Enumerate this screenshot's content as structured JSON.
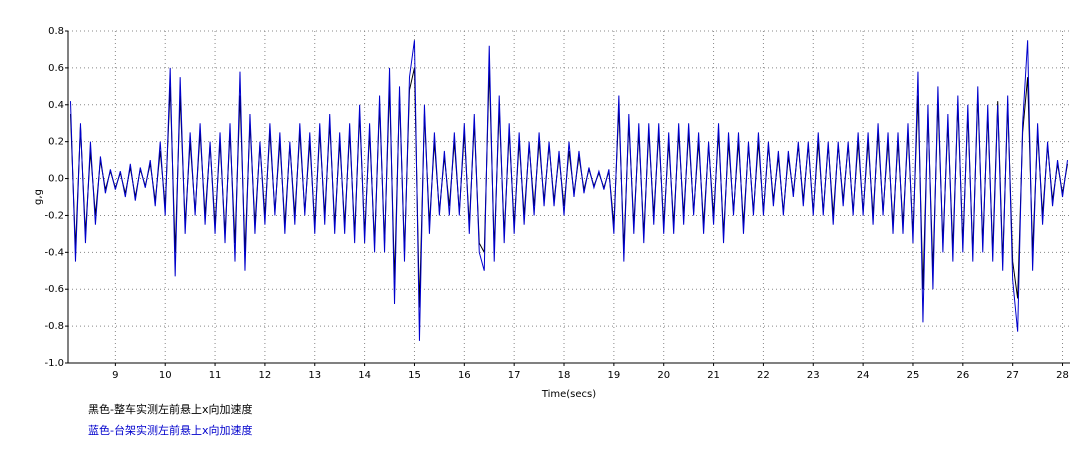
{
  "chart_data": {
    "type": "line",
    "x_label": "Time(secs)",
    "y_label": "g,g",
    "xlim": [
      8.05,
      28.15
    ],
    "ylim": [
      -1.0,
      0.8
    ],
    "xticks": [
      9,
      10,
      11,
      12,
      13,
      14,
      15,
      16,
      17,
      18,
      19,
      20,
      21,
      22,
      23,
      24,
      25,
      26,
      27,
      28
    ],
    "yticks": [
      0.8,
      0.6,
      0.4,
      0.2,
      {
        "value": 0,
        "label": "0.0"
      },
      -0.2,
      -0.4,
      -0.6,
      -0.8,
      {
        "value": -1.0,
        "label": "-1.0"
      }
    ],
    "grid": true,
    "x": [
      8.1,
      8.2,
      8.3,
      8.4,
      8.5,
      8.6,
      8.7,
      8.8,
      8.9,
      9.0,
      9.1,
      9.2,
      9.3,
      9.4,
      9.5,
      9.6,
      9.7,
      9.8,
      9.9,
      10.0,
      10.1,
      10.2,
      10.3,
      10.4,
      10.5,
      10.6,
      10.7,
      10.8,
      10.9,
      11.0,
      11.1,
      11.2,
      11.3,
      11.4,
      11.5,
      11.6,
      11.7,
      11.8,
      11.9,
      12.0,
      12.1,
      12.2,
      12.3,
      12.4,
      12.5,
      12.6,
      12.7,
      12.8,
      12.9,
      13.0,
      13.1,
      13.2,
      13.3,
      13.4,
      13.5,
      13.6,
      13.7,
      13.8,
      13.9,
      14.0,
      14.1,
      14.2,
      14.3,
      14.4,
      14.5,
      14.6,
      14.7,
      14.8,
      14.9,
      15.0,
      15.1,
      15.2,
      15.3,
      15.4,
      15.5,
      15.6,
      15.7,
      15.8,
      15.9,
      16.0,
      16.1,
      16.2,
      16.3,
      16.4,
      16.5,
      16.6,
      16.7,
      16.8,
      16.9,
      17.0,
      17.1,
      17.2,
      17.3,
      17.4,
      17.5,
      17.6,
      17.7,
      17.8,
      17.9,
      18.0,
      18.1,
      18.2,
      18.3,
      18.4,
      18.5,
      18.6,
      18.7,
      18.8,
      18.9,
      19.0,
      19.1,
      19.2,
      19.3,
      19.4,
      19.5,
      19.6,
      19.7,
      19.8,
      19.9,
      20.0,
      20.1,
      20.2,
      20.3,
      20.4,
      20.5,
      20.6,
      20.7,
      20.8,
      20.9,
      21.0,
      21.1,
      21.2,
      21.3,
      21.4,
      21.5,
      21.6,
      21.7,
      21.8,
      21.9,
      22.0,
      22.1,
      22.2,
      22.3,
      22.4,
      22.5,
      22.6,
      22.7,
      22.8,
      22.9,
      23.0,
      23.1,
      23.2,
      23.3,
      23.4,
      23.5,
      23.6,
      23.7,
      23.8,
      23.9,
      24.0,
      24.1,
      24.2,
      24.3,
      24.4,
      24.5,
      24.6,
      24.7,
      24.8,
      24.9,
      25.0,
      25.1,
      25.2,
      25.3,
      25.4,
      25.5,
      25.6,
      25.7,
      25.8,
      25.9,
      26.0,
      26.1,
      26.2,
      26.3,
      26.4,
      26.5,
      26.6,
      26.7,
      26.8,
      26.9,
      27.0,
      27.1,
      27.2,
      27.3,
      27.4,
      27.5,
      27.6,
      27.7,
      27.8,
      27.9,
      28.0,
      28.1
    ],
    "series": [
      {
        "name": "黑色-整车实测左前悬上x向加速度",
        "color": "#000000",
        "values": [
          0.35,
          -0.38,
          0.28,
          -0.3,
          0.15,
          -0.2,
          0.1,
          -0.06,
          0.04,
          -0.05,
          0.03,
          -0.08,
          0.06,
          -0.1,
          0.05,
          -0.04,
          0.08,
          -0.12,
          0.15,
          -0.15,
          0.5,
          -0.4,
          0.45,
          -0.25,
          0.2,
          -0.18,
          0.25,
          -0.2,
          0.18,
          -0.25,
          0.2,
          -0.3,
          0.25,
          -0.35,
          0.45,
          -0.4,
          0.3,
          -0.25,
          0.18,
          -0.2,
          0.25,
          -0.18,
          0.2,
          -0.25,
          0.18,
          -0.2,
          0.25,
          -0.18,
          0.2,
          -0.25,
          0.25,
          -0.2,
          0.3,
          -0.25,
          0.2,
          -0.25,
          0.25,
          -0.3,
          0.35,
          -0.3,
          0.25,
          -0.35,
          0.4,
          -0.35,
          0.5,
          -0.55,
          0.45,
          -0.4,
          0.48,
          0.6,
          -0.7,
          0.35,
          -0.25,
          0.2,
          -0.18,
          0.12,
          -0.15,
          0.2,
          -0.18,
          0.25,
          -0.25,
          0.3,
          -0.35,
          -0.4,
          0.6,
          -0.38,
          0.38,
          -0.3,
          0.25,
          -0.25,
          0.2,
          -0.2,
          0.18,
          -0.15,
          0.2,
          -0.12,
          0.18,
          -0.12,
          0.12,
          -0.15,
          0.15,
          -0.08,
          0.12,
          -0.06,
          0.05,
          -0.04,
          0.03,
          -0.05,
          0.04,
          -0.25,
          0.38,
          -0.38,
          0.3,
          -0.25,
          0.25,
          -0.3,
          0.25,
          -0.2,
          0.25,
          -0.25,
          0.2,
          -0.25,
          0.25,
          -0.2,
          0.25,
          -0.18,
          0.2,
          -0.25,
          0.18,
          -0.2,
          0.25,
          -0.3,
          0.2,
          -0.18,
          0.2,
          -0.25,
          0.18,
          -0.18,
          0.2,
          -0.18,
          0.18,
          -0.12,
          0.12,
          -0.18,
          0.12,
          -0.08,
          0.18,
          -0.12,
          0.18,
          -0.18,
          0.2,
          -0.18,
          0.18,
          -0.2,
          0.18,
          -0.12,
          0.18,
          -0.18,
          0.2,
          -0.18,
          0.2,
          -0.2,
          0.25,
          -0.18,
          0.2,
          -0.25,
          0.2,
          -0.25,
          0.25,
          -0.3,
          0.45,
          -0.6,
          0.35,
          -0.5,
          0.42,
          -0.35,
          0.3,
          -0.38,
          0.4,
          -0.35,
          0.35,
          -0.4,
          0.45,
          -0.35,
          0.35,
          -0.4,
          0.42,
          -0.45,
          0.4,
          -0.45,
          -0.65,
          0.25,
          0.55,
          -0.4,
          0.25,
          -0.2,
          0.18,
          -0.12,
          0.08,
          -0.08,
          0.08
        ]
      },
      {
        "name": "蓝色-台架实测左前悬上x向加速度",
        "color": "#0000cc",
        "values": [
          0.42,
          -0.45,
          0.3,
          -0.35,
          0.2,
          -0.25,
          0.12,
          -0.08,
          0.05,
          -0.06,
          0.04,
          -0.1,
          0.08,
          -0.12,
          0.06,
          -0.05,
          0.1,
          -0.15,
          0.2,
          -0.2,
          0.6,
          -0.53,
          0.55,
          -0.3,
          0.25,
          -0.2,
          0.3,
          -0.25,
          0.2,
          -0.3,
          0.25,
          -0.35,
          0.3,
          -0.45,
          0.58,
          -0.5,
          0.35,
          -0.3,
          0.2,
          -0.25,
          0.3,
          -0.2,
          0.25,
          -0.3,
          0.2,
          -0.25,
          0.3,
          -0.2,
          0.25,
          -0.3,
          0.3,
          -0.25,
          0.35,
          -0.3,
          0.25,
          -0.3,
          0.3,
          -0.35,
          0.4,
          -0.35,
          0.3,
          -0.4,
          0.45,
          -0.4,
          0.6,
          -0.68,
          0.5,
          -0.45,
          0.55,
          0.75,
          -0.88,
          0.4,
          -0.3,
          0.25,
          -0.2,
          0.15,
          -0.2,
          0.25,
          -0.2,
          0.3,
          -0.3,
          0.35,
          -0.4,
          -0.5,
          0.72,
          -0.45,
          0.45,
          -0.35,
          0.3,
          -0.3,
          0.25,
          -0.25,
          0.2,
          -0.2,
          0.25,
          -0.15,
          0.2,
          -0.15,
          0.15,
          -0.2,
          0.2,
          -0.1,
          0.15,
          -0.08,
          0.06,
          -0.05,
          0.04,
          -0.06,
          0.05,
          -0.3,
          0.45,
          -0.45,
          0.35,
          -0.3,
          0.3,
          -0.35,
          0.3,
          -0.25,
          0.3,
          -0.3,
          0.25,
          -0.3,
          0.3,
          -0.25,
          0.3,
          -0.2,
          0.25,
          -0.3,
          0.2,
          -0.25,
          0.3,
          -0.35,
          0.25,
          -0.2,
          0.25,
          -0.3,
          0.2,
          -0.2,
          0.25,
          -0.2,
          0.2,
          -0.15,
          0.15,
          -0.2,
          0.15,
          -0.1,
          0.2,
          -0.15,
          0.2,
          -0.2,
          0.25,
          -0.2,
          0.2,
          -0.25,
          0.2,
          -0.15,
          0.2,
          -0.2,
          0.25,
          -0.2,
          0.25,
          -0.25,
          0.3,
          -0.2,
          0.25,
          -0.3,
          0.25,
          -0.3,
          0.3,
          -0.35,
          0.58,
          -0.78,
          0.4,
          -0.6,
          0.5,
          -0.4,
          0.35,
          -0.45,
          0.45,
          -0.4,
          0.4,
          -0.45,
          0.5,
          -0.4,
          0.4,
          -0.45,
          0.4,
          -0.5,
          0.45,
          -0.55,
          -0.83,
          0.3,
          0.75,
          -0.5,
          0.3,
          -0.25,
          0.2,
          -0.15,
          0.1,
          -0.1,
          0.1
        ]
      }
    ]
  }
}
